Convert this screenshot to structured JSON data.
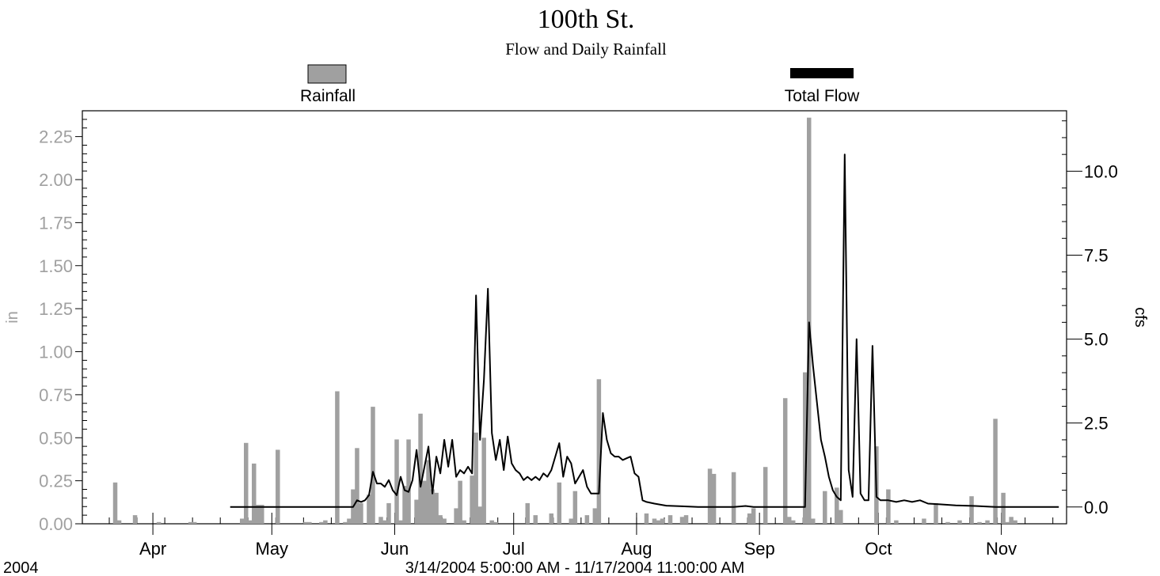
{
  "chart_data": {
    "type": "bar+line",
    "title": "100th St.",
    "subtitle": "Flow and Daily Rainfall",
    "legend": [
      {
        "name": "Rainfall",
        "color": "#a0a0a0",
        "style": "box"
      },
      {
        "name": "Total Flow",
        "color": "#000000",
        "style": "bar"
      }
    ],
    "y_left": {
      "label": "in",
      "ylim": [
        0,
        2.4
      ],
      "ticks": [
        "0.00",
        "0.25",
        "0.50",
        "0.75",
        "1.00",
        "1.25",
        "1.50",
        "1.75",
        "2.00",
        "2.25"
      ],
      "color": "#a0a0a0"
    },
    "y_right": {
      "label": "cfs",
      "ylim": [
        -0.5,
        11.8
      ],
      "ticks": [
        "0.0",
        "2.5",
        "5.0",
        "7.5",
        "10.0"
      ]
    },
    "x_axis": {
      "start_date": "2004-03-14",
      "end_date": "2004-11-17",
      "month_labels": [
        {
          "label": "Apr",
          "date": "2004-04-01"
        },
        {
          "label": "May",
          "date": "2004-05-01"
        },
        {
          "label": "Jun",
          "date": "2004-06-01"
        },
        {
          "label": "Jul",
          "date": "2004-07-01"
        },
        {
          "label": "Aug",
          "date": "2004-08-01"
        },
        {
          "label": "Sep",
          "date": "2004-09-01"
        },
        {
          "label": "Oct",
          "date": "2004-10-01"
        },
        {
          "label": "Nov",
          "date": "2004-11-01"
        }
      ],
      "year_label": "2004",
      "range_label": "3/14/2004 5:00:00 AM - 11/17/2004 11:00:00 AM"
    },
    "rainfall_series": {
      "name": "Rainfall",
      "unit": "in",
      "points": [
        [
          "2004-03-22",
          0.24
        ],
        [
          "2004-03-23",
          0.02
        ],
        [
          "2004-03-27",
          0.05
        ],
        [
          "2004-04-02",
          0.01
        ],
        [
          "2004-04-10",
          0.01
        ],
        [
          "2004-04-11",
          0.01
        ],
        [
          "2004-04-23",
          0.03
        ],
        [
          "2004-04-24",
          0.47
        ],
        [
          "2004-04-25",
          0.02
        ],
        [
          "2004-04-26",
          0.35
        ],
        [
          "2004-04-27",
          0.11
        ],
        [
          "2004-04-28",
          0.11
        ],
        [
          "2004-05-02",
          0.43
        ],
        [
          "2004-05-09",
          0.01
        ],
        [
          "2004-05-10",
          0.01
        ],
        [
          "2004-05-13",
          0.01
        ],
        [
          "2004-05-14",
          0.02
        ],
        [
          "2004-05-17",
          0.77
        ],
        [
          "2004-05-19",
          0.01
        ],
        [
          "2004-05-20",
          0.03
        ],
        [
          "2004-05-21",
          0.2
        ],
        [
          "2004-05-22",
          0.44
        ],
        [
          "2004-05-23",
          0.12
        ],
        [
          "2004-05-25",
          0.17
        ],
        [
          "2004-05-26",
          0.68
        ],
        [
          "2004-05-28",
          0.04
        ],
        [
          "2004-05-29",
          0.02
        ],
        [
          "2004-05-30",
          0.12
        ],
        [
          "2004-06-01",
          0.49
        ],
        [
          "2004-06-02",
          0.02
        ],
        [
          "2004-06-03",
          0.22
        ],
        [
          "2004-06-04",
          0.49
        ],
        [
          "2004-06-06",
          0.14
        ],
        [
          "2004-06-07",
          0.64
        ],
        [
          "2004-06-08",
          0.25
        ],
        [
          "2004-06-09",
          0.37
        ],
        [
          "2004-06-10",
          0.2
        ],
        [
          "2004-06-11",
          0.18
        ],
        [
          "2004-06-12",
          0.05
        ],
        [
          "2004-06-13",
          0.03
        ],
        [
          "2004-06-16",
          0.09
        ],
        [
          "2004-06-17",
          0.25
        ],
        [
          "2004-06-18",
          0.02
        ],
        [
          "2004-06-20",
          0.28
        ],
        [
          "2004-06-21",
          0.53
        ],
        [
          "2004-06-22",
          0.1
        ],
        [
          "2004-06-23",
          0.5
        ],
        [
          "2004-06-25",
          0.02
        ],
        [
          "2004-06-26",
          0.01
        ],
        [
          "2004-07-04",
          0.12
        ],
        [
          "2004-07-06",
          0.05
        ],
        [
          "2004-07-10",
          0.06
        ],
        [
          "2004-07-12",
          0.24
        ],
        [
          "2004-07-15",
          0.03
        ],
        [
          "2004-07-16",
          0.19
        ],
        [
          "2004-07-19",
          0.05
        ],
        [
          "2004-07-21",
          0.09
        ],
        [
          "2004-07-22",
          0.84
        ],
        [
          "2004-08-03",
          0.06
        ],
        [
          "2004-08-05",
          0.03
        ],
        [
          "2004-08-06",
          0.02
        ],
        [
          "2004-08-07",
          0.03
        ],
        [
          "2004-08-09",
          0.05
        ],
        [
          "2004-08-12",
          0.04
        ],
        [
          "2004-08-13",
          0.05
        ],
        [
          "2004-08-19",
          0.32
        ],
        [
          "2004-08-20",
          0.29
        ],
        [
          "2004-08-25",
          0.3
        ],
        [
          "2004-08-29",
          0.06
        ],
        [
          "2004-08-30",
          0.09
        ],
        [
          "2004-09-02",
          0.33
        ],
        [
          "2004-09-07",
          0.73
        ],
        [
          "2004-09-08",
          0.04
        ],
        [
          "2004-09-09",
          0.02
        ],
        [
          "2004-09-12",
          0.88
        ],
        [
          "2004-09-13",
          2.36
        ],
        [
          "2004-09-14",
          0.03
        ],
        [
          "2004-09-17",
          0.19
        ],
        [
          "2004-09-20",
          0.21
        ],
        [
          "2004-09-21",
          0.08
        ],
        [
          "2004-09-30",
          0.45
        ],
        [
          "2004-10-03",
          0.2
        ],
        [
          "2004-10-05",
          0.02
        ],
        [
          "2004-10-12",
          0.03
        ],
        [
          "2004-10-15",
          0.12
        ],
        [
          "2004-10-18",
          0.01
        ],
        [
          "2004-10-21",
          0.02
        ],
        [
          "2004-10-24",
          0.16
        ],
        [
          "2004-10-26",
          0.01
        ],
        [
          "2004-10-28",
          0.02
        ],
        [
          "2004-10-30",
          0.61
        ],
        [
          "2004-11-01",
          0.18
        ],
        [
          "2004-11-02",
          0.01
        ],
        [
          "2004-11-03",
          0.04
        ],
        [
          "2004-11-04",
          0.02
        ]
      ]
    },
    "flow_series": {
      "name": "Total Flow",
      "unit": "cfs",
      "points": [
        [
          "2004-04-20",
          0.0
        ],
        [
          "2004-05-21",
          0.0
        ],
        [
          "2004-05-22",
          0.2
        ],
        [
          "2004-05-23",
          0.15
        ],
        [
          "2004-05-24",
          0.2
        ],
        [
          "2004-05-25",
          0.35
        ],
        [
          "2004-05-26",
          1.05
        ],
        [
          "2004-05-27",
          0.7
        ],
        [
          "2004-05-28",
          0.7
        ],
        [
          "2004-05-29",
          0.6
        ],
        [
          "2004-05-30",
          0.8
        ],
        [
          "2004-05-31",
          0.5
        ],
        [
          "2004-06-01",
          0.35
        ],
        [
          "2004-06-02",
          0.9
        ],
        [
          "2004-06-03",
          0.5
        ],
        [
          "2004-06-04",
          0.45
        ],
        [
          "2004-06-05",
          0.8
        ],
        [
          "2004-06-06",
          1.7
        ],
        [
          "2004-06-07",
          0.6
        ],
        [
          "2004-06-08",
          1.2
        ],
        [
          "2004-06-09",
          1.8
        ],
        [
          "2004-06-10",
          0.4
        ],
        [
          "2004-06-11",
          1.5
        ],
        [
          "2004-06-12",
          1.0
        ],
        [
          "2004-06-13",
          2.0
        ],
        [
          "2004-06-14",
          1.2
        ],
        [
          "2004-06-15",
          2.0
        ],
        [
          "2004-06-16",
          0.9
        ],
        [
          "2004-06-17",
          1.1
        ],
        [
          "2004-06-18",
          1.0
        ],
        [
          "2004-06-19",
          1.2
        ],
        [
          "2004-06-20",
          1.0
        ],
        [
          "2004-06-21",
          6.3
        ],
        [
          "2004-06-22",
          2.0
        ],
        [
          "2004-06-23",
          3.8
        ],
        [
          "2004-06-24",
          6.5
        ],
        [
          "2004-06-25",
          2.2
        ],
        [
          "2004-06-26",
          1.4
        ],
        [
          "2004-06-27",
          2.0
        ],
        [
          "2004-06-28",
          1.1
        ],
        [
          "2004-06-29",
          2.1
        ],
        [
          "2004-06-30",
          1.3
        ],
        [
          "2004-07-01",
          1.1
        ],
        [
          "2004-07-02",
          1.0
        ],
        [
          "2004-07-03",
          0.8
        ],
        [
          "2004-07-04",
          0.9
        ],
        [
          "2004-07-05",
          0.8
        ],
        [
          "2004-07-06",
          0.9
        ],
        [
          "2004-07-07",
          0.8
        ],
        [
          "2004-07-08",
          1.0
        ],
        [
          "2004-07-09",
          0.9
        ],
        [
          "2004-07-10",
          1.1
        ],
        [
          "2004-07-11",
          1.5
        ],
        [
          "2004-07-12",
          1.9
        ],
        [
          "2004-07-13",
          0.9
        ],
        [
          "2004-07-14",
          1.5
        ],
        [
          "2004-07-15",
          1.3
        ],
        [
          "2004-07-16",
          0.7
        ],
        [
          "2004-07-17",
          0.9
        ],
        [
          "2004-07-18",
          1.1
        ],
        [
          "2004-07-19",
          0.6
        ],
        [
          "2004-07-20",
          0.4
        ],
        [
          "2004-07-21",
          0.4
        ],
        [
          "2004-07-22",
          0.4
        ],
        [
          "2004-07-23",
          2.8
        ],
        [
          "2004-07-24",
          2.0
        ],
        [
          "2004-07-25",
          1.6
        ],
        [
          "2004-07-26",
          1.5
        ],
        [
          "2004-07-27",
          1.5
        ],
        [
          "2004-07-28",
          1.4
        ],
        [
          "2004-07-29",
          1.45
        ],
        [
          "2004-07-30",
          1.5
        ],
        [
          "2004-07-31",
          1.0
        ],
        [
          "2004-08-01",
          0.9
        ],
        [
          "2004-08-02",
          0.2
        ],
        [
          "2004-08-03",
          0.15
        ],
        [
          "2004-08-05",
          0.1
        ],
        [
          "2004-08-08",
          0.04
        ],
        [
          "2004-08-12",
          0.02
        ],
        [
          "2004-08-16",
          0.0
        ],
        [
          "2004-08-25",
          0.0
        ],
        [
          "2004-08-28",
          0.03
        ],
        [
          "2004-08-30",
          0.0
        ],
        [
          "2004-09-12",
          0.0
        ],
        [
          "2004-09-13",
          5.5
        ],
        [
          "2004-09-14",
          4.2
        ],
        [
          "2004-09-15",
          3.1
        ],
        [
          "2004-09-16",
          2.0
        ],
        [
          "2004-09-17",
          1.5
        ],
        [
          "2004-09-18",
          0.9
        ],
        [
          "2004-09-19",
          0.5
        ],
        [
          "2004-09-20",
          0.3
        ],
        [
          "2004-09-21",
          0.2
        ],
        [
          "2004-09-22",
          10.5
        ],
        [
          "2004-09-23",
          1.1
        ],
        [
          "2004-09-24",
          0.3
        ],
        [
          "2004-09-25",
          5.0
        ],
        [
          "2004-09-26",
          0.4
        ],
        [
          "2004-09-27",
          0.2
        ],
        [
          "2004-09-28",
          0.2
        ],
        [
          "2004-09-29",
          4.8
        ],
        [
          "2004-09-30",
          0.3
        ],
        [
          "2004-10-01",
          0.2
        ],
        [
          "2004-10-03",
          0.2
        ],
        [
          "2004-10-05",
          0.15
        ],
        [
          "2004-10-07",
          0.2
        ],
        [
          "2004-10-09",
          0.15
        ],
        [
          "2004-10-11",
          0.2
        ],
        [
          "2004-10-13",
          0.1
        ],
        [
          "2004-10-16",
          0.08
        ],
        [
          "2004-10-20",
          0.05
        ],
        [
          "2004-10-25",
          0.03
        ],
        [
          "2004-10-30",
          0.0
        ],
        [
          "2004-11-15",
          0.0
        ]
      ]
    }
  }
}
